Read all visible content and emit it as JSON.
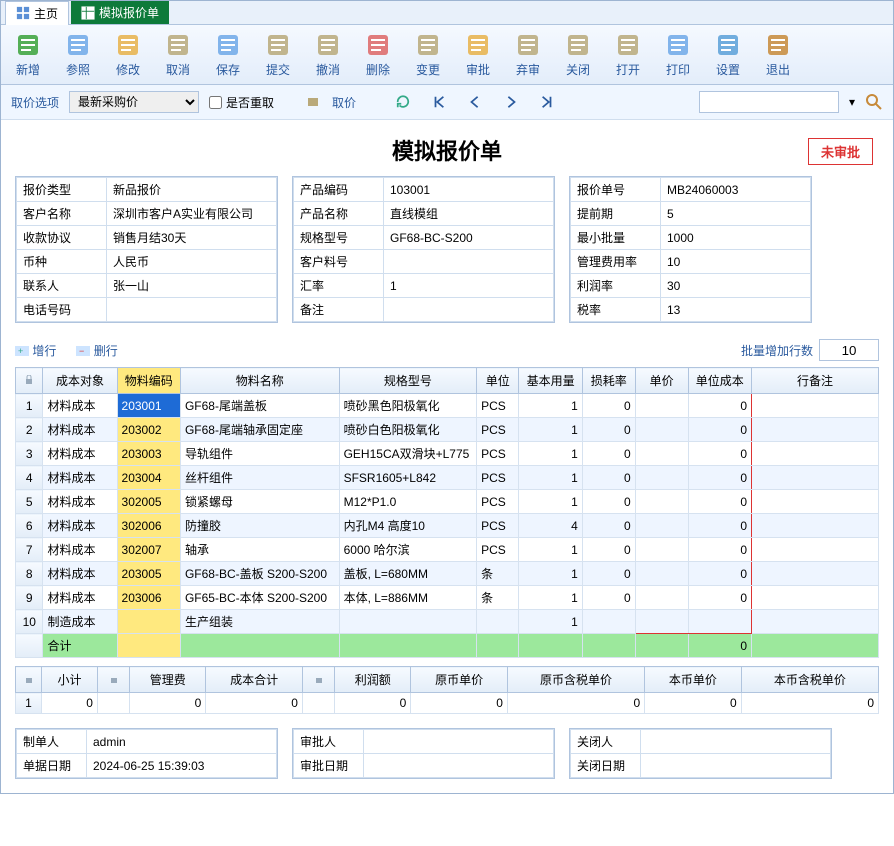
{
  "tabs": {
    "home": "主页",
    "active": "模拟报价单"
  },
  "toolbar": [
    {
      "k": "new",
      "t": "新增",
      "c": "#3aa23a"
    },
    {
      "k": "ref",
      "t": "参照",
      "c": "#6fa8e8"
    },
    {
      "k": "edit",
      "t": "修改",
      "c": "#e8b24a"
    },
    {
      "k": "cancel",
      "t": "取消",
      "c": "#b9a97a"
    },
    {
      "k": "save",
      "t": "保存",
      "c": "#6fa8e8"
    },
    {
      "k": "submit",
      "t": "提交",
      "c": "#b9a97a"
    },
    {
      "k": "undo",
      "t": "撤消",
      "c": "#b9a97a"
    },
    {
      "k": "delete",
      "t": "删除",
      "c": "#d66"
    },
    {
      "k": "change",
      "t": "变更",
      "c": "#b9a97a"
    },
    {
      "k": "approve",
      "t": "审批",
      "c": "#e8b24a"
    },
    {
      "k": "reject",
      "t": "弃审",
      "c": "#b9a97a"
    },
    {
      "k": "close",
      "t": "关闭",
      "c": "#b9a97a"
    },
    {
      "k": "open",
      "t": "打开",
      "c": "#b9a97a"
    },
    {
      "k": "print",
      "t": "打印",
      "c": "#6fa8e8"
    },
    {
      "k": "settings",
      "t": "设置",
      "c": "#5aa0d8"
    },
    {
      "k": "exit",
      "t": "退出",
      "c": "#c78a3a"
    }
  ],
  "subbar": {
    "opt_label": "取价选项",
    "price_mode": "最新采购价",
    "reget_label": "是否重取",
    "get_price": "取价"
  },
  "title": "模拟报价单",
  "stamp": "未审批",
  "header_left": [
    [
      "报价类型",
      "新品报价"
    ],
    [
      "客户名称",
      "深圳市客户A实业有限公司"
    ],
    [
      "收款协议",
      "销售月结30天"
    ],
    [
      "币种",
      "人民币"
    ],
    [
      "联系人",
      "张一山"
    ],
    [
      "电话号码",
      ""
    ]
  ],
  "header_mid": [
    [
      "产品编码",
      "103001"
    ],
    [
      "产品名称",
      "直线模组"
    ],
    [
      "规格型号",
      "GF68-BC-S200"
    ],
    [
      "客户料号",
      ""
    ],
    [
      "汇率",
      "1"
    ],
    [
      "备注",
      ""
    ]
  ],
  "header_right": [
    [
      "报价单号",
      "MB24060003"
    ],
    [
      "提前期",
      "5"
    ],
    [
      "最小批量",
      "1000"
    ],
    [
      "管理费用率",
      "10"
    ],
    [
      "利润率",
      "30"
    ],
    [
      "税率",
      "13"
    ]
  ],
  "midbar": {
    "addrow": "增行",
    "delrow": "删行",
    "batch_label": "批量增加行数",
    "batch_val": "10"
  },
  "grid": {
    "cols": [
      "",
      "成本对象",
      "物料编码",
      "物料名称",
      "规格型号",
      "单位",
      "基本用量",
      "损耗率",
      "单价",
      "单位成本",
      "行备注"
    ],
    "rows": [
      [
        "材料成本",
        "203001",
        "GF68-尾端盖板",
        "喷砂黑色阳极氧化",
        "PCS",
        "1",
        "0",
        "",
        "0",
        ""
      ],
      [
        "材料成本",
        "203002",
        "GF68-尾端轴承固定座",
        "喷砂白色阳极氧化",
        "PCS",
        "1",
        "0",
        "",
        "0",
        ""
      ],
      [
        "材料成本",
        "203003",
        "导轨组件",
        "GEH15CA双滑块+L775",
        "PCS",
        "1",
        "0",
        "",
        "0",
        ""
      ],
      [
        "材料成本",
        "203004",
        "丝杆组件",
        "SFSR1605+L842",
        "PCS",
        "1",
        "0",
        "",
        "0",
        ""
      ],
      [
        "材料成本",
        "302005",
        "锁紧螺母",
        "M12*P1.0",
        "PCS",
        "1",
        "0",
        "",
        "0",
        ""
      ],
      [
        "材料成本",
        "302006",
        "防撞胶",
        "内孔M4 高度10",
        "PCS",
        "4",
        "0",
        "",
        "0",
        ""
      ],
      [
        "材料成本",
        "302007",
        "轴承",
        "6000 哈尔滨",
        "PCS",
        "1",
        "0",
        "",
        "0",
        ""
      ],
      [
        "材料成本",
        "203005",
        "GF68-BC-盖板 S200-S200",
        "盖板, L=680MM",
        "条",
        "1",
        "0",
        "",
        "0",
        ""
      ],
      [
        "材料成本",
        "203006",
        "GF65-BC-本体 S200-S200",
        "本体, L=886MM",
        "条",
        "1",
        "0",
        "",
        "0",
        ""
      ],
      [
        "制造成本",
        "",
        "生产组装",
        "",
        "",
        "1",
        "",
        "",
        "",
        ""
      ]
    ],
    "total_label": "合计",
    "total_cost": "0"
  },
  "sum": {
    "cols": [
      "",
      "小计",
      "",
      "管理费",
      "成本合计",
      "",
      "利润额",
      "原币单价",
      "原币含税单价",
      "本币单价",
      "本币含税单价"
    ],
    "vals": [
      "0",
      "",
      "0",
      "0",
      "",
      "0",
      "0",
      "0",
      "0",
      "0"
    ]
  },
  "footer_left": [
    [
      "制单人",
      "admin"
    ],
    [
      "单据日期",
      "2024-06-25 15:39:03"
    ]
  ],
  "footer_mid": [
    [
      "审批人",
      ""
    ],
    [
      "审批日期",
      ""
    ]
  ],
  "footer_right": [
    [
      "关闭人",
      ""
    ],
    [
      "关闭日期",
      ""
    ]
  ]
}
